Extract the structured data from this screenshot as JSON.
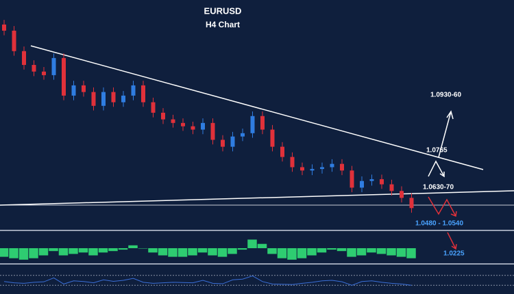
{
  "chart_data": {
    "type": "candlestick",
    "title": "EURUSD",
    "subtitle": "H4 Chart",
    "open": [
      1.131,
      1.1286,
      1.1206,
      1.1152,
      1.1126,
      1.1112,
      1.1179,
      1.1032,
      1.1072,
      1.1046,
      1.0992,
      1.1046,
      1.1006,
      1.1032,
      1.1072,
      1.1006,
      1.0965,
      1.0939,
      1.0925,
      1.0912,
      1.0899,
      1.0925,
      1.0859,
      1.0832,
      1.0872,
      1.0885,
      1.0952,
      1.0899,
      1.0832,
      1.0792,
      1.0752,
      1.0739,
      1.0745,
      1.0752,
      1.0765,
      1.0739,
      1.0672,
      1.0698,
      1.0705,
      1.0685,
      1.0659,
      1.0632
    ],
    "high": [
      1.1328,
      1.1304,
      1.1224,
      1.117,
      1.1144,
      1.1197,
      1.1197,
      1.109,
      1.109,
      1.1064,
      1.1064,
      1.1064,
      1.105,
      1.109,
      1.109,
      1.1024,
      1.0983,
      1.0957,
      1.0943,
      1.093,
      1.0943,
      1.0943,
      1.0877,
      1.089,
      1.0903,
      1.097,
      1.097,
      1.0917,
      1.085,
      1.081,
      1.077,
      1.0763,
      1.077,
      1.0783,
      1.0783,
      1.0757,
      1.0716,
      1.0723,
      1.0723,
      1.0703,
      1.0677,
      1.065
    ],
    "low": [
      1.1268,
      1.1188,
      1.1134,
      1.1108,
      1.1094,
      1.1094,
      1.1014,
      1.1014,
      1.1028,
      1.0974,
      1.0974,
      1.0988,
      1.0988,
      1.1014,
      1.0988,
      1.0947,
      1.0921,
      1.0907,
      1.0894,
      1.0881,
      1.0881,
      1.0841,
      1.0814,
      1.0814,
      1.0854,
      1.0867,
      1.0881,
      1.0814,
      1.0774,
      1.0734,
      1.0721,
      1.0721,
      1.0727,
      1.0734,
      1.0721,
      1.0654,
      1.0654,
      1.068,
      1.0667,
      1.0641,
      1.0614,
      1.0574
    ],
    "close": [
      1.1286,
      1.1206,
      1.1152,
      1.1126,
      1.1112,
      1.1179,
      1.1032,
      1.1072,
      1.1046,
      1.0992,
      1.1046,
      1.1006,
      1.1032,
      1.1072,
      1.1006,
      1.0965,
      1.0939,
      1.0925,
      1.0912,
      1.0899,
      1.0925,
      1.0859,
      1.0832,
      1.0872,
      1.0885,
      1.0952,
      1.0899,
      1.0832,
      1.0792,
      1.0752,
      1.0739,
      1.0745,
      1.0752,
      1.0765,
      1.0739,
      1.0672,
      1.0698,
      1.0705,
      1.0685,
      1.0659,
      1.0632,
      1.0592
    ],
    "ylim": [
      1.051,
      1.1406
    ],
    "up_color": "#2f7de1",
    "down_color": "#e0313a",
    "histogram": [
      -0.6,
      -0.7,
      -0.8,
      -0.7,
      -0.5,
      -0.2,
      -0.5,
      -0.4,
      -0.3,
      -0.5,
      -0.3,
      -0.2,
      -0.1,
      0.2,
      0,
      -0.3,
      -0.5,
      -0.6,
      -0.6,
      -0.5,
      -0.3,
      -0.5,
      -0.6,
      -0.4,
      -0.1,
      0.6,
      0.3,
      -0.4,
      -0.7,
      -0.8,
      -0.7,
      -0.5,
      -0.3,
      -0.1,
      -0.2,
      -0.6,
      -0.5,
      -0.3,
      -0.4,
      -0.5,
      -0.6,
      -0.7
    ],
    "histogram_ylim": [
      -1,
      1
    ],
    "histogram_color": "#2ecc71",
    "oscillator": [
      45,
      40,
      38,
      42,
      44,
      60,
      35,
      48,
      45,
      40,
      52,
      46,
      50,
      58,
      42,
      38,
      40,
      42,
      41,
      40,
      50,
      38,
      36,
      52,
      55,
      68,
      45,
      35,
      34,
      33,
      38,
      42,
      48,
      50,
      44,
      30,
      45,
      48,
      42,
      38,
      35,
      30
    ],
    "oscillator_ylim": [
      0,
      100
    ],
    "oscillator_levels": [
      70,
      30
    ],
    "oscillator_color": "#3a6fd8",
    "annotations": [
      "1.0930-60",
      "1.0765",
      "1.0630-70",
      "1.0480 - 1.0540",
      "1.0225"
    ]
  }
}
